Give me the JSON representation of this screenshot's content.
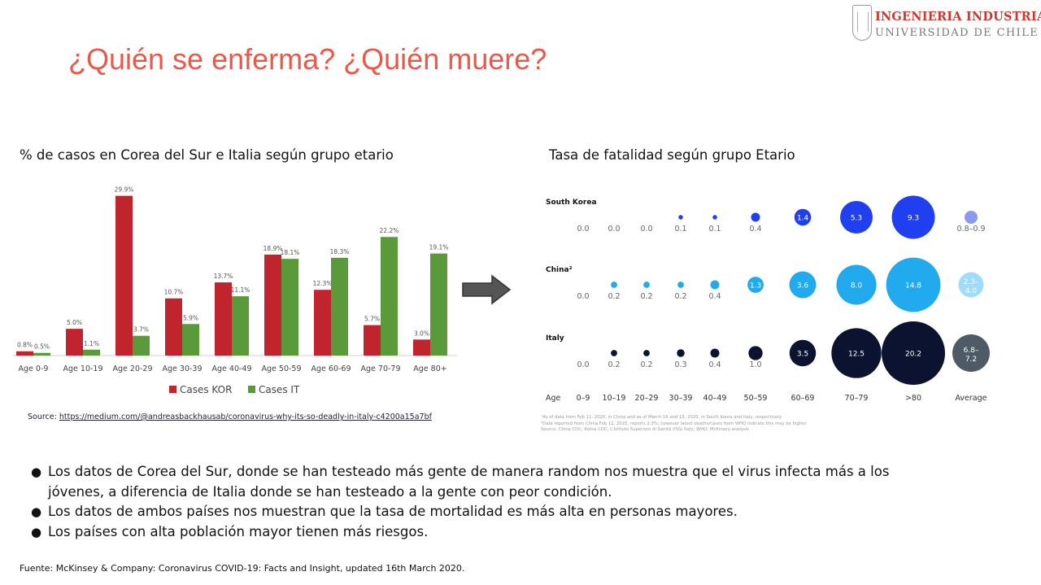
{
  "slide": {
    "title": "¿Quién se enferma? ¿Quién muere?",
    "logo": {
      "line1": "INGENIERIA INDUSTRIAL",
      "line2": "UNIVERSIDAD DE CHILE"
    },
    "bullets": [
      "Los datos de Corea del Sur, donde se han testeado más gente de manera random nos muestra que el virus infecta más a los jóvenes, a diferencia de Italia donde se han testeado a la gente con peor condición.",
      "Los datos de ambos países nos muestran que la tasa de mortalidad es más alta en personas mayores.",
      "Los países con alta población mayor tienen más riesgos."
    ],
    "footer": "Fuente: McKinsey & Company: Coronavirus COVID-19: Facts and Insight, updated 16th March 2020.",
    "source": {
      "label": "Source:",
      "url": "https://medium.com/@andreasbackhausab/coronavirus-why-its-so-deadly-in-italy-c4200a15a7bf"
    },
    "bubble_notes": [
      "¹As of data from Feb 11, 2020, in China and as of March 16 and 15, 2020, in South Korea and Italy, respectively.",
      "²Data reported from China Feb 11, 2020, reports 2.3%; however latest deaths/cases from WHO indicate this may be higher.",
      "Source: China CDC; Korea CDC; L'Istituto Superiore di Sanità (ISS) Italy; WHO; McKinsey analysis"
    ]
  },
  "chart_data": [
    {
      "type": "bar",
      "title": "% de casos en Corea del Sur e Italia según grupo etario",
      "categories": [
        "Age 0-9",
        "Age 10-19",
        "Age 20-29",
        "Age 30-39",
        "Age 40-49",
        "Age 50-59",
        "Age 60-69",
        "Age 70-79",
        "Age 80+"
      ],
      "series": [
        {
          "name": "Cases KOR",
          "color": "#c0242c",
          "values": [
            0.8,
            5.0,
            29.9,
            10.7,
            13.7,
            18.9,
            12.3,
            5.7,
            3.0
          ],
          "labels": [
            "0.8%",
            "5.0%",
            "29.9%",
            "10.7%",
            "13.7%",
            "18.9%",
            "12.3%",
            "5.7%",
            "3.0%"
          ]
        },
        {
          "name": "Cases IT",
          "color": "#5a9a3a",
          "values": [
            0.5,
            1.1,
            3.7,
            5.9,
            11.1,
            18.1,
            18.3,
            22.2,
            19.1
          ],
          "labels": [
            "0.5%",
            "1.1%",
            "3.7%",
            "5.9%",
            "11.1%",
            "18.1%",
            "18.3%",
            "22.2%",
            "19.1%"
          ]
        }
      ],
      "ylim": [
        0,
        30
      ],
      "legend_position": "bottom"
    },
    {
      "type": "scatter",
      "title": "Tasa de fatalidad según grupo Etario",
      "x_axis_label": "Age",
      "categories": [
        "0–9",
        "10–19",
        "20–29",
        "30–39",
        "40–49",
        "50–59",
        "60–69",
        "70–79",
        ">80",
        "Average"
      ],
      "series": [
        {
          "name": "South Korea",
          "color": "#1f3ff0",
          "average_color": "#8a9af2",
          "values": [
            0.0,
            0.0,
            0.0,
            0.1,
            0.1,
            0.4,
            1.4,
            5.3,
            9.3,
            0.85
          ],
          "labels": [
            "0.0",
            "0.0",
            "0.0",
            "0.1",
            "0.1",
            "0.4",
            "1.4",
            "5.3",
            "9.3",
            "0.8–0.9"
          ]
        },
        {
          "name": "China²",
          "color": "#22aaee",
          "average_color": "#9fdcfa",
          "values": [
            0.0,
            0.2,
            0.2,
            0.2,
            0.4,
            1.3,
            3.6,
            8.0,
            14.8,
            3.15
          ],
          "labels": [
            "0.0",
            "0.2",
            "0.2",
            "0.2",
            "0.4",
            "1.3",
            "3.6",
            "8.0",
            "14.8",
            "2.3–4.0"
          ]
        },
        {
          "name": "Italy",
          "color": "#0b1330",
          "average_color": "#4e5a66",
          "values": [
            0.0,
            0.2,
            0.2,
            0.3,
            0.4,
            1.0,
            3.5,
            12.5,
            20.2,
            7.0
          ],
          "labels": [
            "0.0",
            "0.2",
            "0.2",
            "0.3",
            "0.4",
            "1.0",
            "3.5",
            "12.5",
            "20.2",
            "6.8–7.2"
          ]
        }
      ]
    }
  ]
}
